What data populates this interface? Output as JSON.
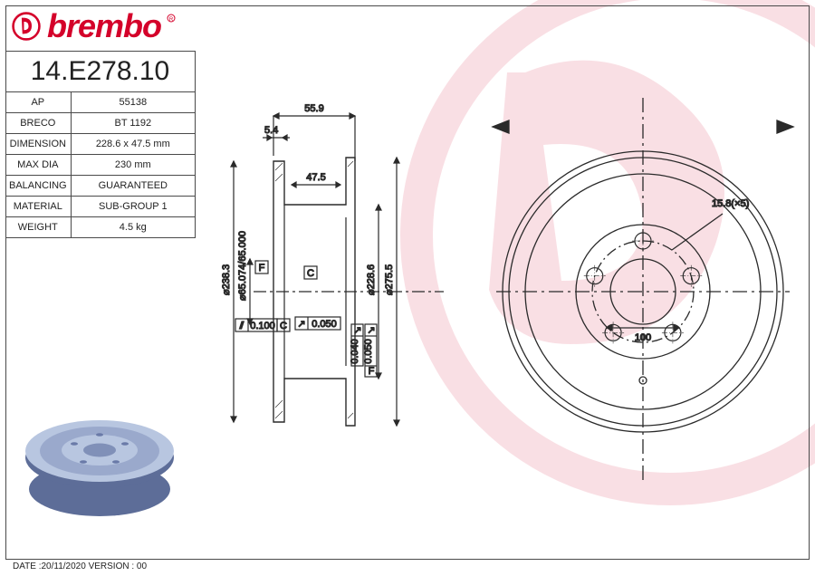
{
  "brand": "brembo",
  "brand_color": "#d4002a",
  "part_number": "14.E278.10",
  "spec_rows": [
    {
      "label": "AP",
      "value": "55138"
    },
    {
      "label": "BRECO",
      "value": "BT 1192"
    },
    {
      "label": "DIMENSION",
      "value": "228.6 x 47.5 mm"
    },
    {
      "label": "MAX DIA",
      "value": "230 mm"
    },
    {
      "label": "BALANCING",
      "value": "GUARANTEED"
    },
    {
      "label": "MATERIAL",
      "value": "SUB-GROUP 1"
    },
    {
      "label": "WEIGHT",
      "value": "4.5 kg"
    }
  ],
  "footer": "DATE :20/11/2020 VERSION : 00",
  "dims": {
    "width_top": "55.9",
    "lip": "5.4",
    "inner_h": "47.5",
    "outer_d": "238.3",
    "bore_tol": "65.074\n65.000",
    "flat_tol": "0.100",
    "datum_c": "C",
    "datum_f": "F",
    "runout": "0.050",
    "runout2": "0.040",
    "runout3": "0.050",
    "id": "228.6",
    "od": "275.5",
    "bolt": "15.8(×5)",
    "pcd": "100"
  },
  "colors": {
    "line": "#2a2a2a",
    "iso_top": "#b8c6e0",
    "iso_side": "#6a7aa8",
    "watermark": "#d4002a"
  }
}
